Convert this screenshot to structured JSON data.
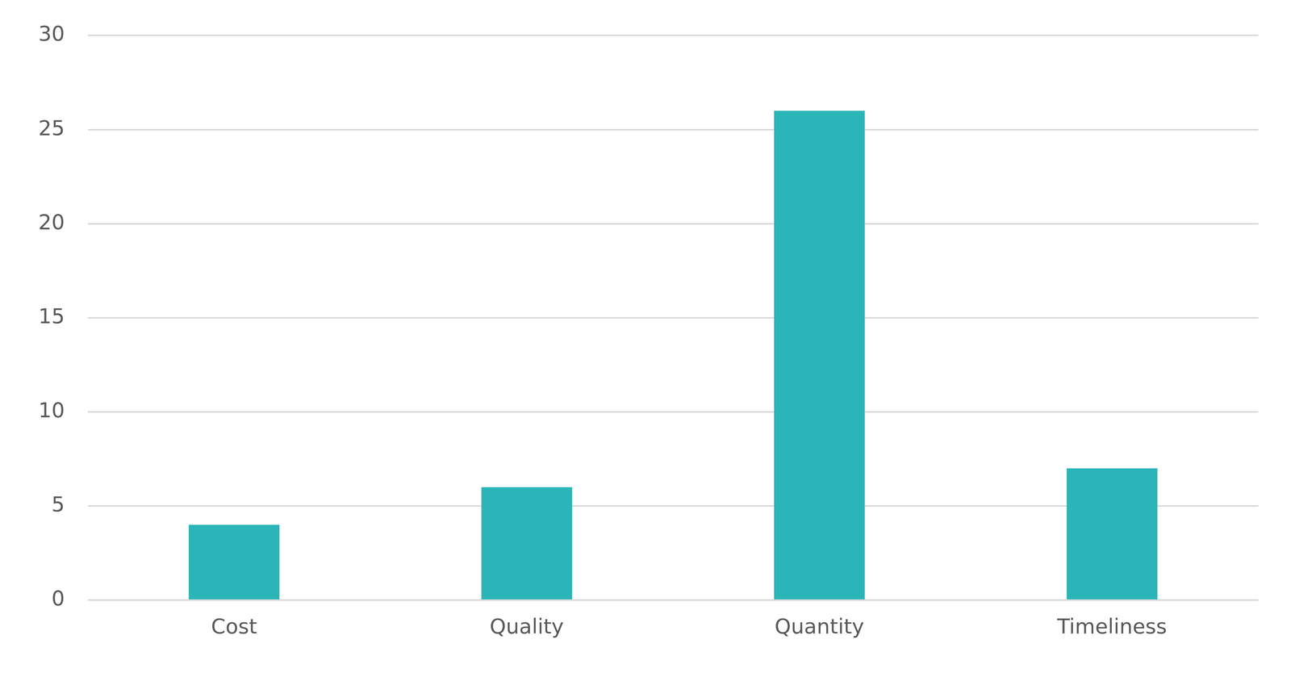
{
  "chart_data": {
    "type": "bar",
    "categories": [
      "Cost",
      "Quality",
      "Quantity",
      "Timeliness"
    ],
    "values": [
      4,
      6,
      26,
      7
    ],
    "color": "#2bb5b8",
    "ylim": [
      0,
      30
    ],
    "yticks": [
      0,
      5,
      10,
      15,
      20,
      25,
      30
    ],
    "grid": true
  }
}
